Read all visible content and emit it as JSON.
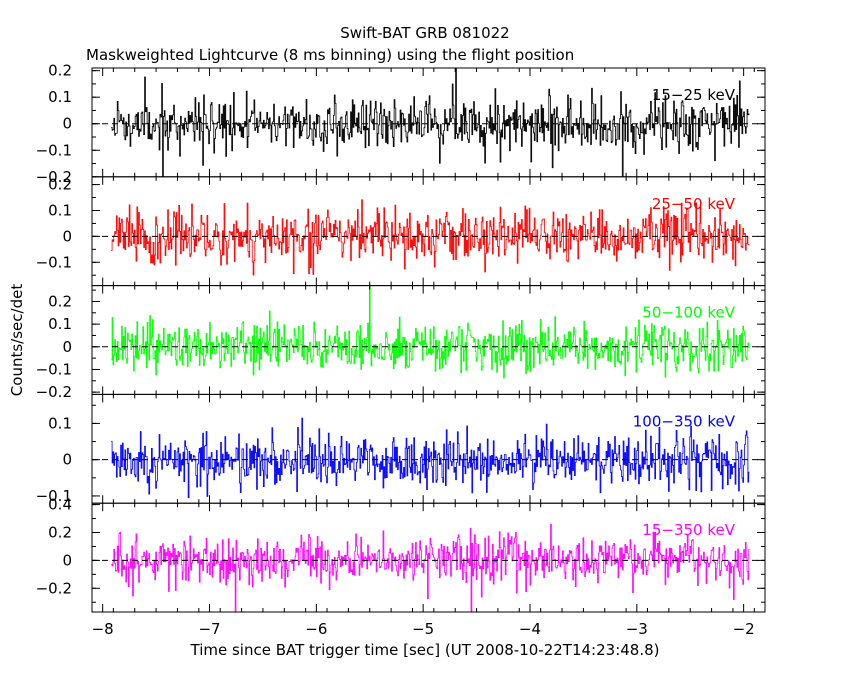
{
  "chart_data": {
    "type": "line",
    "title": "Swift-BAT GRB 081022",
    "subtitle": "Maskweighted Lightcurve (8 ms binning) using the flight position",
    "xlabel": "Time since BAT trigger time [sec] (UT 2008-10-22T14:23:48.8)",
    "ylabel": "Counts/sec/det",
    "xlim": [
      -8.1,
      -1.8
    ],
    "xticks": [
      -8,
      -7,
      -6,
      -5,
      -4,
      -3,
      -2
    ],
    "xtick_labels": [
      "−8",
      "−7",
      "−6",
      "−5",
      "−4",
      "−3",
      "−2"
    ],
    "data_range": [
      -7.92,
      -1.95
    ],
    "bin_width_s": 0.008,
    "panels": [
      {
        "name": "15-25 keV",
        "label": "15−25 keV",
        "color": "#000000",
        "ylim": [
          -0.2,
          0.21
        ],
        "yticks": [
          -0.2,
          -0.1,
          0,
          0.1,
          0.2
        ],
        "ytick_labels": [
          "−0.2",
          "−0.1",
          "0",
          "0.1",
          "0.2"
        ],
        "amplitude": 0.09,
        "seed": 11
      },
      {
        "name": "25-50 keV",
        "label": "25−50 keV",
        "color": "#ff0000",
        "ylim": [
          -0.19,
          0.23
        ],
        "yticks": [
          -0.1,
          0,
          0.1,
          0.2
        ],
        "ytick_labels": [
          "−0.1",
          "0",
          "0.1",
          "0.2"
        ],
        "amplitude": 0.09,
        "seed": 23
      },
      {
        "name": "50-100 keV",
        "label": "50−100 keV",
        "color": "#00ff00",
        "ylim": [
          -0.21,
          0.27
        ],
        "yticks": [
          -0.2,
          -0.1,
          0,
          0.1,
          0.2
        ],
        "ytick_labels": [
          "−0.2",
          "−0.1",
          "0",
          "0.1",
          "0.2"
        ],
        "amplitude": 0.095,
        "seed": 37
      },
      {
        "name": "100-350 keV",
        "label": "100−350 keV",
        "color": "#0000ff",
        "ylim": [
          -0.12,
          0.18
        ],
        "yticks": [
          -0.1,
          0,
          0.1
        ],
        "ytick_labels": [
          "−0.1",
          "0",
          "0.1"
        ],
        "amplitude": 0.065,
        "seed": 53
      },
      {
        "name": "15-350 keV",
        "label": "15−350 keV",
        "color": "#ff00ff",
        "ylim": [
          -0.37,
          0.41
        ],
        "yticks": [
          -0.2,
          0,
          0.2,
          0.4
        ],
        "ytick_labels": [
          "−0.2",
          "0",
          "0.2",
          "0.4"
        ],
        "amplitude": 0.16,
        "seed": 71
      }
    ]
  }
}
